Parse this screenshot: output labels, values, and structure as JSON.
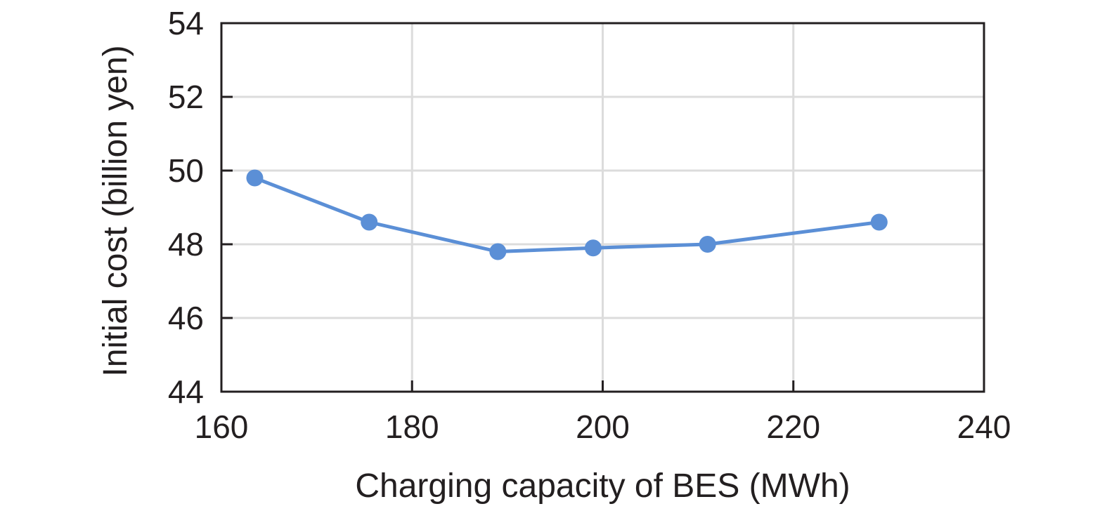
{
  "chart_data": {
    "type": "line",
    "title": "",
    "xlabel": "Charging capacity of BES (MWh)",
    "ylabel": "Initial cost (billion yen)",
    "xlim": [
      160,
      240
    ],
    "ylim": [
      44,
      54
    ],
    "x_ticks": [
      160,
      180,
      200,
      220,
      240
    ],
    "y_ticks": [
      44,
      46,
      48,
      50,
      52,
      54
    ],
    "x_tick_labels": [
      "160",
      "180",
      "200",
      "220",
      "240"
    ],
    "y_tick_labels": [
      "44",
      "46",
      "48",
      "50",
      "52",
      "54"
    ],
    "grid": true,
    "series": [
      {
        "color": "#5b8fd6",
        "x": [
          163.5,
          175.5,
          189,
          199,
          211,
          229
        ],
        "y": [
          49.8,
          48.6,
          47.8,
          47.9,
          48.0,
          48.6
        ]
      }
    ]
  }
}
